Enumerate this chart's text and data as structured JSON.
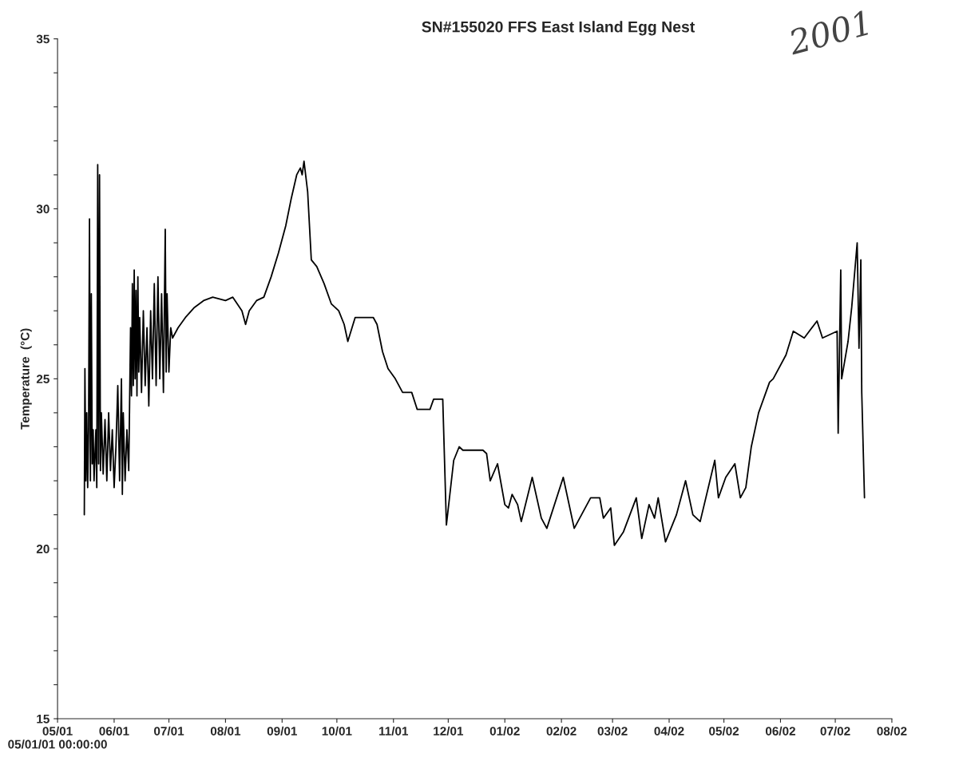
{
  "chart_data": {
    "type": "line",
    "title": "SN#155020 FFS East Island Egg Nest",
    "ylabel": "Temperature  (°C)",
    "annotations": [
      "2001"
    ],
    "ylim": [
      15,
      35
    ],
    "yticks": [
      15,
      {
        "value": 16,
        "label": null
      },
      {
        "value": 17,
        "label": null
      },
      {
        "value": 18,
        "label": null
      },
      {
        "value": 19,
        "label": null
      },
      20,
      {
        "value": 21,
        "label": null
      },
      {
        "value": 22,
        "label": null
      },
      {
        "value": 23,
        "label": null
      },
      {
        "value": 24,
        "label": null
      },
      25,
      {
        "value": 26,
        "label": null
      },
      {
        "value": 27,
        "label": null
      },
      {
        "value": 28,
        "label": null
      },
      {
        "value": 29,
        "label": null
      },
      30,
      {
        "value": 31,
        "label": null
      },
      {
        "value": 32,
        "label": null
      },
      {
        "value": 33,
        "label": null
      },
      {
        "value": 34,
        "label": null
      },
      35
    ],
    "xlim": [
      "2001-05-01",
      "2002-08-01"
    ],
    "xticks": [
      {
        "value": "2001-05-01",
        "label": "05/01\n05/01/01 00:00:00"
      },
      {
        "value": "2001-06-01",
        "label": "06/01"
      },
      {
        "value": "2001-07-01",
        "label": "07/01"
      },
      {
        "value": "2001-08-01",
        "label": "08/01"
      },
      {
        "value": "2001-09-01",
        "label": "09/01"
      },
      {
        "value": "2001-10-01",
        "label": "10/01"
      },
      {
        "value": "2001-11-01",
        "label": "11/01"
      },
      {
        "value": "2001-12-01",
        "label": "12/01"
      },
      {
        "value": "2002-01-01",
        "label": "01/02"
      },
      {
        "value": "2002-02-01",
        "label": "02/02"
      },
      {
        "value": "2002-03-01",
        "label": "03/02"
      },
      {
        "value": "2002-04-01",
        "label": "04/02"
      },
      {
        "value": "2002-05-01",
        "label": "05/02"
      },
      {
        "value": "2002-06-01",
        "label": "06/02"
      },
      {
        "value": "2002-07-01",
        "label": "07/02"
      },
      {
        "value": "2002-08-01",
        "label": "08/02"
      }
    ],
    "grid": false,
    "marker": "none",
    "line_style": "solid",
    "series": [
      {
        "color": "#000000",
        "x": [
          "2001-05-15T16:00",
          "2001-05-16T00:00",
          "2001-05-16T12:00",
          "2001-05-17T00:00",
          "2001-05-17T12:00",
          "2001-05-18T00:00",
          "2001-05-18T12:00",
          "2001-05-19T00:00",
          "2001-05-19T12:00",
          "2001-05-20T00:00",
          "2001-05-20T12:00",
          "2001-05-21T00:00",
          "2001-05-22T00:00",
          "2001-05-22T12:00",
          "2001-05-23T00:00",
          "2001-05-23T12:00",
          "2001-05-24T00:00",
          "2001-05-24T12:00",
          "2001-05-25T00:00",
          "2001-05-26T00:00",
          "2001-05-27T00:00",
          "2001-05-28T00:00",
          "2001-05-29T00:00",
          "2001-05-30T00:00",
          "2001-05-31T00:00",
          "2001-06-01T00:00",
          "2001-06-02T00:00",
          "2001-06-03T00:00",
          "2001-06-04T00:00",
          "2001-06-05T00:00",
          "2001-06-05T12:00",
          "2001-06-06T00:00",
          "2001-06-07T00:00",
          "2001-06-08T00:00",
          "2001-06-09T00:00",
          "2001-06-10T00:00",
          "2001-06-10T12:00",
          "2001-06-11T00:00",
          "2001-06-11T12:00",
          "2001-06-12T00:00",
          "2001-06-12T12:00",
          "2001-06-13T00:00",
          "2001-06-13T12:00",
          "2001-06-14T00:00",
          "2001-06-14T12:00",
          "2001-06-15T00:00",
          "2001-06-16T00:00",
          "2001-06-17T00:00",
          "2001-06-18T00:00",
          "2001-06-19T00:00",
          "2001-06-20T00:00",
          "2001-06-21T00:00",
          "2001-06-22T00:00",
          "2001-06-23T00:00",
          "2001-06-24T00:00",
          "2001-06-25T00:00",
          "2001-06-26T00:00",
          "2001-06-27T00:00",
          "2001-06-28T00:00",
          "2001-06-29T00:00",
          "2001-06-29T12:00",
          "2001-06-30T00:00",
          "2001-07-01T00:00",
          "2001-07-02T00:00",
          "2001-07-03T00:00",
          "2001-07-06",
          "2001-07-10",
          "2001-07-15",
          "2001-07-20",
          "2001-07-25",
          "2001-08-01",
          "2001-08-05",
          "2001-08-10",
          "2001-08-12",
          "2001-08-14",
          "2001-08-18",
          "2001-08-22",
          "2001-08-26",
          "2001-08-30",
          "2001-09-03",
          "2001-09-06",
          "2001-09-09",
          "2001-09-11",
          "2001-09-12",
          "2001-09-13",
          "2001-09-15",
          "2001-09-17",
          "2001-09-20",
          "2001-09-24",
          "2001-09-28",
          "2001-10-02",
          "2001-10-05",
          "2001-10-07",
          "2001-10-11",
          "2001-10-15",
          "2001-10-21",
          "2001-10-23",
          "2001-10-26",
          "2001-10-29",
          "2001-11-02",
          "2001-11-06",
          "2001-11-11",
          "2001-11-14",
          "2001-11-21",
          "2001-11-23",
          "2001-11-28",
          "2001-11-30",
          "2001-12-04",
          "2001-12-07",
          "2001-12-09",
          "2001-12-20",
          "2001-12-22",
          "2001-12-24",
          "2001-12-28",
          "2002-01-01",
          "2002-01-03",
          "2002-01-05",
          "2002-01-08",
          "2002-01-10",
          "2002-01-16",
          "2002-01-21",
          "2002-01-24",
          "2002-02-02",
          "2002-02-08",
          "2002-02-17",
          "2002-02-22",
          "2002-02-24",
          "2002-02-28",
          "2002-03-02",
          "2002-03-07",
          "2002-03-14",
          "2002-03-17",
          "2002-03-21",
          "2002-03-24",
          "2002-03-26",
          "2002-03-30",
          "2002-04-05",
          "2002-04-10",
          "2002-04-14",
          "2002-04-18",
          "2002-04-26",
          "2002-04-28",
          "2002-05-02",
          "2002-05-07",
          "2002-05-10",
          "2002-05-13",
          "2002-05-16",
          "2002-05-20",
          "2002-05-24",
          "2002-05-26",
          "2002-05-28",
          "2002-06-04",
          "2002-06-08",
          "2002-06-11",
          "2002-06-14",
          "2002-06-21",
          "2002-06-24",
          "2002-07-02T00:00",
          "2002-07-02T14:00",
          "2002-07-04T00:00",
          "2002-07-04T12:00",
          "2002-07-08T00:00",
          "2002-07-10T00:00",
          "2002-07-13T00:00",
          "2002-07-14T00:00",
          "2002-07-15T00:00",
          "2002-07-15T12:00",
          "2002-07-17T00:00"
        ],
        "values": [
          21.0,
          25.3,
          22.0,
          24.0,
          21.8,
          23.5,
          29.7,
          22.0,
          27.5,
          22.5,
          23.5,
          22.0,
          23.5,
          21.8,
          31.3,
          22.5,
          31.0,
          22.3,
          24.0,
          22.2,
          23.8,
          22.0,
          24.0,
          22.3,
          23.5,
          21.8,
          23.0,
          24.8,
          22.0,
          25.0,
          21.6,
          24.0,
          22.0,
          23.5,
          22.3,
          26.5,
          24.5,
          27.8,
          24.8,
          28.2,
          25.0,
          27.6,
          24.5,
          28.0,
          25.2,
          26.8,
          24.6,
          27.0,
          24.8,
          26.5,
          24.2,
          27.0,
          25.0,
          27.8,
          24.8,
          28.0,
          25.0,
          27.5,
          24.6,
          29.4,
          25.2,
          27.5,
          25.2,
          26.5,
          26.2,
          26.5,
          26.8,
          27.1,
          27.3,
          27.4,
          27.3,
          27.4,
          27.0,
          26.6,
          27.0,
          27.3,
          27.4,
          28.0,
          28.7,
          29.5,
          30.3,
          31.0,
          31.2,
          31.0,
          31.4,
          30.5,
          28.5,
          28.3,
          27.8,
          27.2,
          27.0,
          26.6,
          26.1,
          26.8,
          26.8,
          26.8,
          26.6,
          25.8,
          25.3,
          25.0,
          24.6,
          24.6,
          24.1,
          24.1,
          24.4,
          24.4,
          20.7,
          22.6,
          23.0,
          22.9,
          22.9,
          22.8,
          22.0,
          22.5,
          21.3,
          21.2,
          21.6,
          21.3,
          20.8,
          22.1,
          20.9,
          20.6,
          22.1,
          20.6,
          21.5,
          21.5,
          20.9,
          21.2,
          20.1,
          20.5,
          21.5,
          20.3,
          21.3,
          20.9,
          21.5,
          20.2,
          21.0,
          22.0,
          21.0,
          20.8,
          22.6,
          21.5,
          22.1,
          22.5,
          21.5,
          21.8,
          23.0,
          24.0,
          24.6,
          24.9,
          25.0,
          25.7,
          26.4,
          26.3,
          26.2,
          26.7,
          26.2,
          26.4,
          23.4,
          28.2,
          25.0,
          26.1,
          27.1,
          29.0,
          25.9,
          28.5,
          24.6,
          21.5
        ]
      }
    ]
  }
}
